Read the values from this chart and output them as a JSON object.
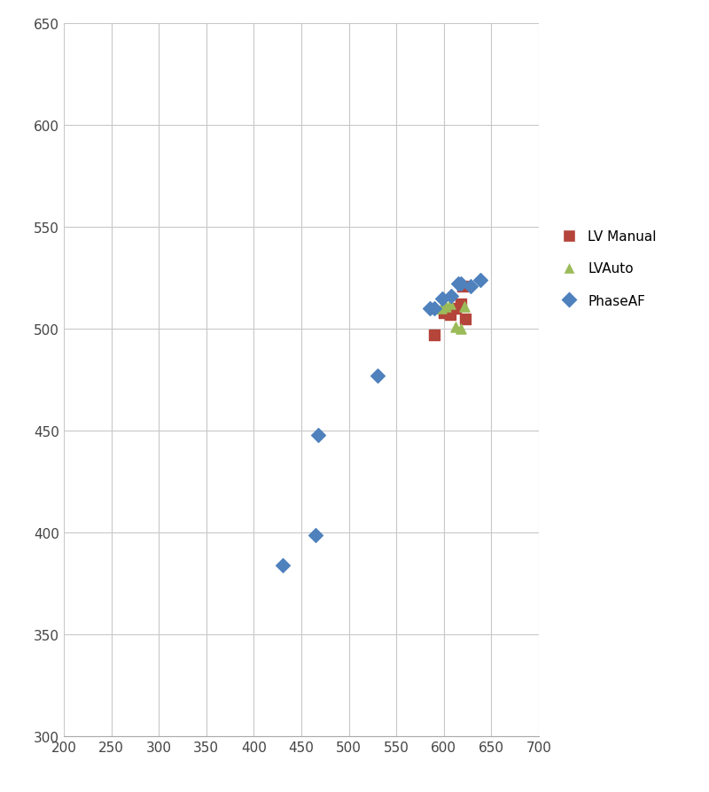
{
  "lv_manual": [
    [
      590,
      497
    ],
    [
      600,
      508
    ],
    [
      607,
      507
    ],
    [
      612,
      510
    ],
    [
      618,
      512
    ],
    [
      620,
      521
    ],
    [
      623,
      505
    ]
  ],
  "lv_auto": [
    [
      590,
      510
    ],
    [
      597,
      510
    ],
    [
      602,
      511
    ],
    [
      607,
      512
    ],
    [
      612,
      501
    ],
    [
      618,
      500
    ],
    [
      622,
      511
    ]
  ],
  "phase_af": [
    [
      430,
      384
    ],
    [
      465,
      399
    ],
    [
      468,
      448
    ],
    [
      530,
      477
    ],
    [
      585,
      510
    ],
    [
      590,
      510
    ],
    [
      598,
      515
    ],
    [
      608,
      516
    ],
    [
      615,
      522
    ],
    [
      618,
      522
    ],
    [
      628,
      521
    ],
    [
      638,
      524
    ]
  ],
  "lv_manual_color": "#B5443A",
  "lv_auto_color": "#9BBB59",
  "phase_af_color": "#4F81BD",
  "xlim": [
    200,
    700
  ],
  "ylim": [
    300,
    650
  ],
  "xticks": [
    200,
    250,
    300,
    350,
    400,
    450,
    500,
    550,
    600,
    650,
    700
  ],
  "yticks": [
    300,
    350,
    400,
    450,
    500,
    550,
    600,
    650
  ],
  "background_color": "#FFFFFF",
  "grid_color": "#C8C8C8",
  "marker_size": 8,
  "legend_labels": [
    "LV Manual",
    "LVAuto",
    "PhaseAF"
  ],
  "legend_fontsize": 11,
  "tick_fontsize": 11
}
